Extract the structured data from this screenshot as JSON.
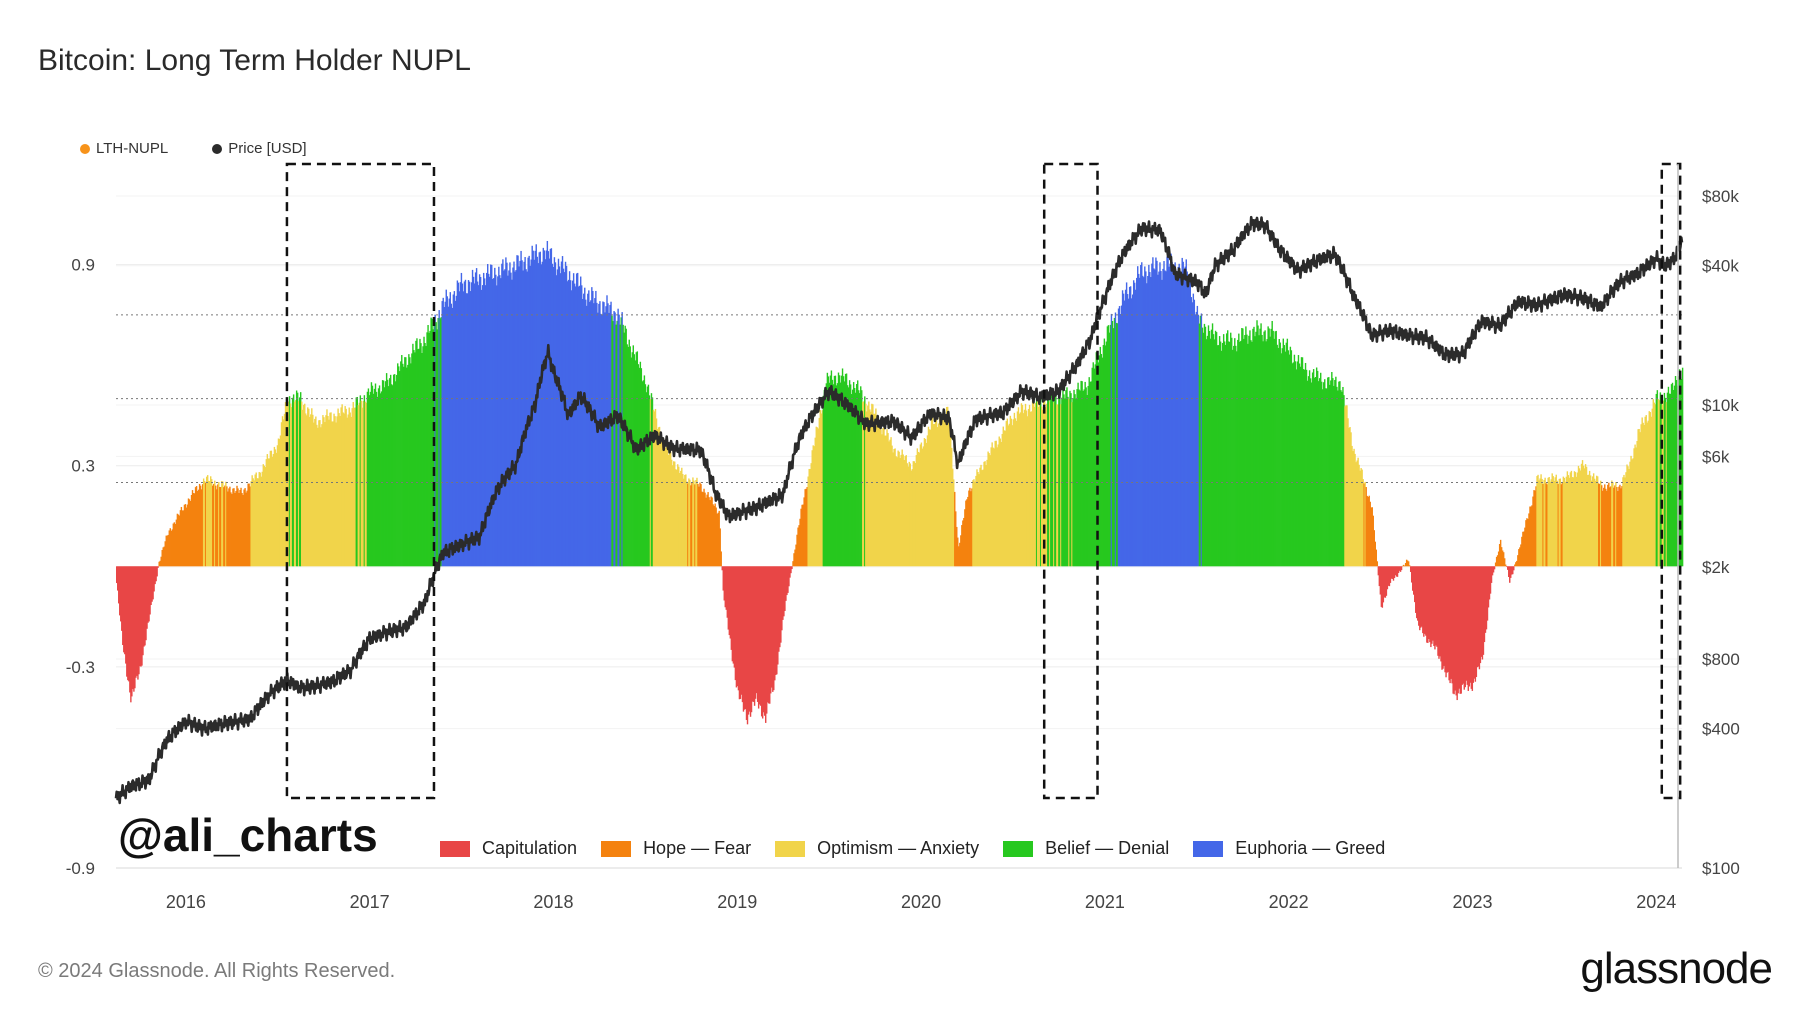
{
  "header": {
    "title": "Bitcoin: Long Term Holder NUPL"
  },
  "legend_top": [
    {
      "label": "LTH-NUPL",
      "color": "#f7931a"
    },
    {
      "label": "Price [USD]",
      "color": "#2b2b2b"
    }
  ],
  "zones_legend": [
    {
      "label": "Capitulation",
      "color": "#e84646"
    },
    {
      "label": "Hope — Fear",
      "color": "#f4820f"
    },
    {
      "label": "Optimism — Anxiety",
      "color": "#f1d44a"
    },
    {
      "label": "Belief — Denial",
      "color": "#27c81f"
    },
    {
      "label": "Euphoria — Greed",
      "color": "#4467e8"
    }
  ],
  "watermark": "@ali_charts",
  "footer": {
    "copyright": "© 2024 Glassnode. All Rights Reserved.",
    "brand": "glassnode"
  },
  "chart_data": {
    "type": "area",
    "x_ticks": [
      "2016",
      "2017",
      "2018",
      "2019",
      "2020",
      "2021",
      "2022",
      "2023",
      "2024"
    ],
    "x_range": [
      2015.62,
      2024.14
    ],
    "y_left": {
      "ticks": [
        "0.9",
        "0.3",
        "-0.3",
        "-0.9"
      ],
      "tick_values": [
        0.9,
        0.3,
        -0.3,
        -0.9
      ],
      "range": [
        -0.9,
        1.2
      ]
    },
    "y_right": {
      "scale": "log",
      "ticks": [
        "$80k",
        "$40k",
        "$10k",
        "$6k",
        "$2k",
        "$800",
        "$400",
        "$100"
      ],
      "tick_values": [
        80000,
        40000,
        10000,
        6000,
        2000,
        800,
        400,
        100
      ]
    },
    "reference_lines": [
      0.75,
      0.5,
      0.25
    ],
    "series": [
      {
        "name": "LTH-NUPL",
        "points": [
          [
            2015.62,
            -0.05
          ],
          [
            2015.65,
            -0.22
          ],
          [
            2015.7,
            -0.4
          ],
          [
            2015.75,
            -0.3
          ],
          [
            2015.8,
            -0.15
          ],
          [
            2015.85,
            0.01
          ],
          [
            2015.9,
            0.1
          ],
          [
            2016.0,
            0.19
          ],
          [
            2016.1,
            0.26
          ],
          [
            2016.2,
            0.24
          ],
          [
            2016.3,
            0.22
          ],
          [
            2016.4,
            0.28
          ],
          [
            2016.5,
            0.37
          ],
          [
            2016.55,
            0.5
          ],
          [
            2016.62,
            0.5
          ],
          [
            2016.7,
            0.43
          ],
          [
            2016.8,
            0.45
          ],
          [
            2016.9,
            0.47
          ],
          [
            2017.0,
            0.52
          ],
          [
            2017.1,
            0.55
          ],
          [
            2017.2,
            0.62
          ],
          [
            2017.3,
            0.68
          ],
          [
            2017.4,
            0.78
          ],
          [
            2017.5,
            0.84
          ],
          [
            2017.6,
            0.86
          ],
          [
            2017.7,
            0.88
          ],
          [
            2017.8,
            0.9
          ],
          [
            2017.95,
            0.94
          ],
          [
            2018.1,
            0.86
          ],
          [
            2018.2,
            0.8
          ],
          [
            2018.35,
            0.75
          ],
          [
            2018.4,
            0.68
          ],
          [
            2018.5,
            0.55
          ],
          [
            2018.6,
            0.36
          ],
          [
            2018.7,
            0.27
          ],
          [
            2018.8,
            0.24
          ],
          [
            2018.9,
            0.16
          ],
          [
            2018.92,
            -0.08
          ],
          [
            2019.0,
            -0.38
          ],
          [
            2019.05,
            -0.45
          ],
          [
            2019.1,
            -0.4
          ],
          [
            2019.15,
            -0.45
          ],
          [
            2019.2,
            -0.35
          ],
          [
            2019.25,
            -0.15
          ],
          [
            2019.3,
            0.02
          ],
          [
            2019.35,
            0.18
          ],
          [
            2019.4,
            0.32
          ],
          [
            2019.48,
            0.55
          ],
          [
            2019.55,
            0.57
          ],
          [
            2019.65,
            0.53
          ],
          [
            2019.75,
            0.45
          ],
          [
            2019.85,
            0.35
          ],
          [
            2019.95,
            0.3
          ],
          [
            2020.05,
            0.42
          ],
          [
            2020.15,
            0.46
          ],
          [
            2020.2,
            0.05
          ],
          [
            2020.25,
            0.22
          ],
          [
            2020.35,
            0.32
          ],
          [
            2020.5,
            0.45
          ],
          [
            2020.6,
            0.48
          ],
          [
            2020.7,
            0.5
          ],
          [
            2020.8,
            0.51
          ],
          [
            2020.9,
            0.54
          ],
          [
            2021.0,
            0.68
          ],
          [
            2021.1,
            0.8
          ],
          [
            2021.2,
            0.88
          ],
          [
            2021.35,
            0.9
          ],
          [
            2021.45,
            0.88
          ],
          [
            2021.5,
            0.74
          ],
          [
            2021.6,
            0.68
          ],
          [
            2021.7,
            0.67
          ],
          [
            2021.8,
            0.7
          ],
          [
            2021.9,
            0.7
          ],
          [
            2022.0,
            0.64
          ],
          [
            2022.1,
            0.58
          ],
          [
            2022.2,
            0.55
          ],
          [
            2022.28,
            0.55
          ],
          [
            2022.35,
            0.35
          ],
          [
            2022.45,
            0.18
          ],
          [
            2022.5,
            -0.12
          ],
          [
            2022.55,
            -0.05
          ],
          [
            2022.65,
            0.02
          ],
          [
            2022.7,
            -0.18
          ],
          [
            2022.8,
            -0.25
          ],
          [
            2022.9,
            -0.38
          ],
          [
            2023.0,
            -0.35
          ],
          [
            2023.05,
            -0.28
          ],
          [
            2023.1,
            -0.05
          ],
          [
            2023.15,
            0.08
          ],
          [
            2023.2,
            -0.05
          ],
          [
            2023.25,
            0.05
          ],
          [
            2023.35,
            0.26
          ],
          [
            2023.5,
            0.26
          ],
          [
            2023.6,
            0.3
          ],
          [
            2023.7,
            0.24
          ],
          [
            2023.8,
            0.24
          ],
          [
            2023.85,
            0.3
          ],
          [
            2023.9,
            0.4
          ],
          [
            2024.0,
            0.5
          ],
          [
            2024.08,
            0.52
          ],
          [
            2024.12,
            0.58
          ]
        ]
      },
      {
        "name": "Price [USD]",
        "points": [
          [
            2015.62,
            200
          ],
          [
            2015.7,
            225
          ],
          [
            2015.8,
            240
          ],
          [
            2015.9,
            360
          ],
          [
            2016.0,
            430
          ],
          [
            2016.1,
            400
          ],
          [
            2016.2,
            420
          ],
          [
            2016.35,
            440
          ],
          [
            2016.45,
            560
          ],
          [
            2016.55,
            650
          ],
          [
            2016.62,
            600
          ],
          [
            2016.7,
            610
          ],
          [
            2016.8,
            640
          ],
          [
            2016.9,
            720
          ],
          [
            2017.0,
            980
          ],
          [
            2017.1,
            1050
          ],
          [
            2017.2,
            1100
          ],
          [
            2017.3,
            1400
          ],
          [
            2017.4,
            2300
          ],
          [
            2017.5,
            2500
          ],
          [
            2017.6,
            2700
          ],
          [
            2017.7,
            4400
          ],
          [
            2017.8,
            5600
          ],
          [
            2017.9,
            10000
          ],
          [
            2017.97,
            17000
          ],
          [
            2018.0,
            14000
          ],
          [
            2018.08,
            9000
          ],
          [
            2018.15,
            11000
          ],
          [
            2018.25,
            8000
          ],
          [
            2018.35,
            9000
          ],
          [
            2018.45,
            6400
          ],
          [
            2018.55,
            7400
          ],
          [
            2018.65,
            6500
          ],
          [
            2018.8,
            6400
          ],
          [
            2018.88,
            4200
          ],
          [
            2018.95,
            3300
          ],
          [
            2019.1,
            3600
          ],
          [
            2019.25,
            4100
          ],
          [
            2019.35,
            7500
          ],
          [
            2019.5,
            11500
          ],
          [
            2019.6,
            10000
          ],
          [
            2019.7,
            8300
          ],
          [
            2019.85,
            8500
          ],
          [
            2019.95,
            7200
          ],
          [
            2020.05,
            9200
          ],
          [
            2020.15,
            8800
          ],
          [
            2020.2,
            5500
          ],
          [
            2020.3,
            8700
          ],
          [
            2020.45,
            9300
          ],
          [
            2020.55,
            11500
          ],
          [
            2020.65,
            10800
          ],
          [
            2020.75,
            11500
          ],
          [
            2020.85,
            15000
          ],
          [
            2020.92,
            19000
          ],
          [
            2021.0,
            29000
          ],
          [
            2021.1,
            45000
          ],
          [
            2021.2,
            58000
          ],
          [
            2021.3,
            57000
          ],
          [
            2021.38,
            37000
          ],
          [
            2021.5,
            34000
          ],
          [
            2021.55,
            30000
          ],
          [
            2021.6,
            40000
          ],
          [
            2021.7,
            47000
          ],
          [
            2021.8,
            61000
          ],
          [
            2021.87,
            60000
          ],
          [
            2021.95,
            47000
          ],
          [
            2022.05,
            38000
          ],
          [
            2022.15,
            42000
          ],
          [
            2022.25,
            45000
          ],
          [
            2022.35,
            30000
          ],
          [
            2022.45,
            20000
          ],
          [
            2022.55,
            21000
          ],
          [
            2022.65,
            20000
          ],
          [
            2022.75,
            19500
          ],
          [
            2022.85,
            16500
          ],
          [
            2022.95,
            16600
          ],
          [
            2023.05,
            23000
          ],
          [
            2023.15,
            22000
          ],
          [
            2023.25,
            28000
          ],
          [
            2023.35,
            27000
          ],
          [
            2023.5,
            30000
          ],
          [
            2023.6,
            29000
          ],
          [
            2023.7,
            26500
          ],
          [
            2023.8,
            34000
          ],
          [
            2023.9,
            37000
          ],
          [
            2024.0,
            43000
          ],
          [
            2024.05,
            40000
          ],
          [
            2024.1,
            43000
          ],
          [
            2024.14,
            52000
          ]
        ]
      }
    ],
    "highlight_periods": [
      [
        2016.55,
        2017.35
      ],
      [
        2020.67,
        2020.96
      ],
      [
        2024.03,
        2024.13
      ]
    ]
  }
}
